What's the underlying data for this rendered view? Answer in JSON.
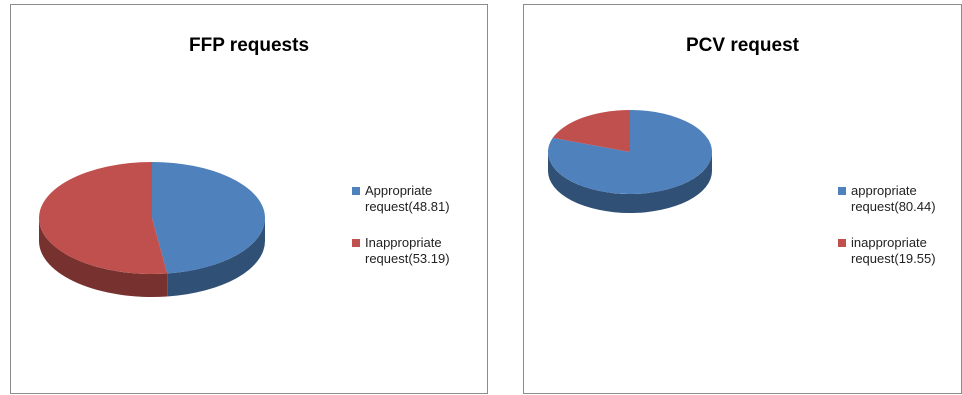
{
  "chart_data": [
    {
      "type": "pie",
      "title": "FFP requests",
      "slices": [
        {
          "label": "Appropriate request(48.81)",
          "value": 48.81,
          "color": "#4f81bd"
        },
        {
          "label": "Inappropriate request(53.19)",
          "value": 53.19,
          "color": "#c0504d"
        }
      ],
      "legend_position": "right",
      "three_d": true
    },
    {
      "type": "pie",
      "title": "PCV request",
      "slices": [
        {
          "label": "appropriate request(80.44)",
          "value": 80.44,
          "color": "#4f81bd"
        },
        {
          "label": "inappropriate request(19.55)",
          "value": 19.55,
          "color": "#c0504d"
        }
      ],
      "legend_position": "right",
      "three_d": true
    }
  ]
}
